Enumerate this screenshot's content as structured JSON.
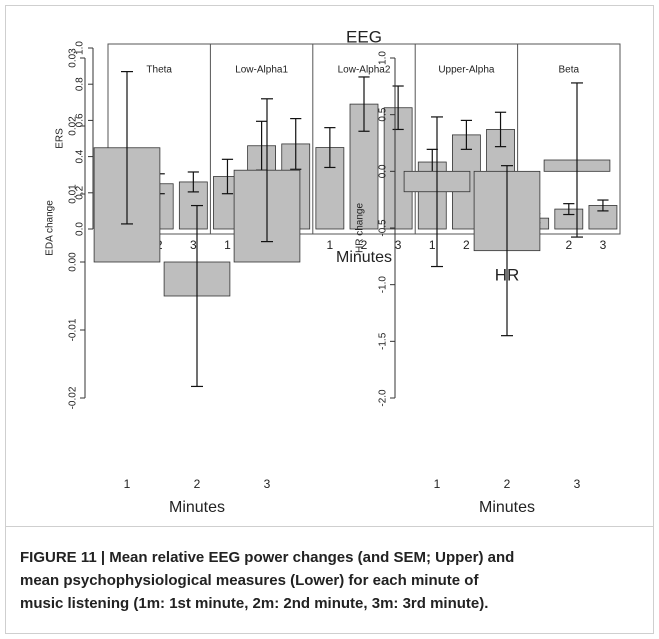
{
  "chart_data": [
    {
      "type": "bar",
      "title": "EEG",
      "xlabel": "Minutes",
      "ylabel": "ERS",
      "groups": [
        "Theta",
        "Low-Alpha1",
        "Low-Alpha2",
        "Upper-Alpha",
        "Beta"
      ],
      "categories": [
        "1",
        "2",
        "3",
        "1",
        "2",
        "3",
        "1",
        "2",
        "3",
        "1",
        "2",
        "3",
        "1",
        "2",
        "3"
      ],
      "values": [
        0.19,
        0.25,
        0.26,
        0.29,
        0.46,
        0.47,
        0.45,
        0.69,
        0.67,
        0.37,
        0.52,
        0.55,
        0.06,
        0.11,
        0.13
      ],
      "errors": [
        0.045,
        0.055,
        0.055,
        0.095,
        0.135,
        0.14,
        0.11,
        0.15,
        0.12,
        0.07,
        0.08,
        0.095,
        0.025,
        0.03,
        0.03
      ],
      "color": "#bebebe",
      "ylim": [
        0,
        1
      ],
      "yticks": [
        {
          "value": 0,
          "label": "0.0"
        },
        0.2,
        0.4,
        0.6,
        0.8,
        {
          "value": 1,
          "label": "1.0"
        }
      ]
    },
    {
      "type": "bar",
      "title": "EDA",
      "xlabel": "Minutes",
      "ylabel": "EDA change",
      "categories": [
        "1",
        "2",
        "3"
      ],
      "values": [
        0.0168,
        -0.005,
        0.0135
      ],
      "errors": [
        0.0112,
        0.0133,
        0.0105
      ],
      "color": "#bebebe",
      "ylim": [
        -0.02,
        0.03
      ],
      "yticks": [
        -0.02,
        -0.01,
        {
          "value": 0,
          "label": "0.00"
        },
        0.01,
        0.02,
        0.03
      ]
    },
    {
      "type": "bar",
      "title": "HR",
      "xlabel": "Minutes",
      "ylabel": "HR change",
      "categories": [
        "1",
        "2",
        "3"
      ],
      "values": [
        -0.18,
        -0.7,
        0.1
      ],
      "errors": [
        0.66,
        0.75,
        0.68
      ],
      "color": "#bebebe",
      "ylim": [
        -2,
        1
      ],
      "yticks": [
        {
          "value": -2,
          "label": "-2.0"
        },
        -1.5,
        {
          "value": -1,
          "label": "-1.0"
        },
        -0.5,
        {
          "value": 0,
          "label": "0.0"
        },
        0.5,
        {
          "value": 1,
          "label": "1.0"
        }
      ]
    }
  ],
  "caption": [
    "FIGURE 11 | Mean relative EEG power changes (and SEM; Upper) and",
    "mean psychophysiological measures (Lower) for each minute of",
    "music listening (1m: 1st minute, 2m: 2nd minute, 3m: 3rd minute)."
  ]
}
